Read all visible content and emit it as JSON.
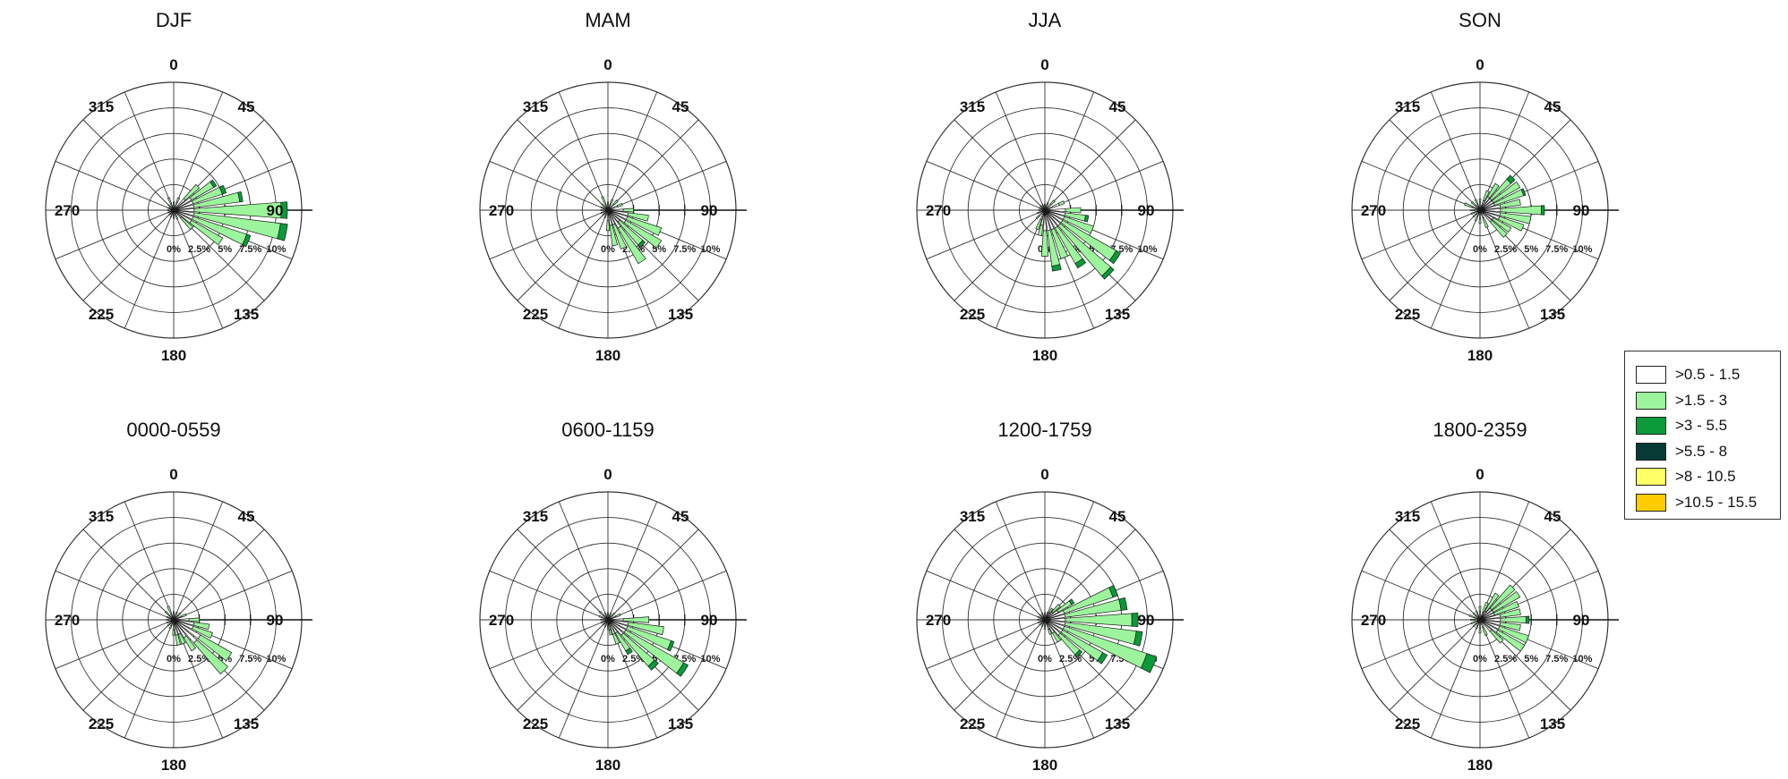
{
  "chart_data": {
    "type": "windrose",
    "direction_labels": [
      "0",
      "45",
      "90",
      "135",
      "180",
      "225",
      "270",
      "315"
    ],
    "radial_ticks": [
      {
        "value": 0,
        "label": "0%"
      },
      {
        "value": 2.5,
        "label": "2.5%"
      },
      {
        "value": 5,
        "label": "5%"
      },
      {
        "value": 7.5,
        "label": "7.5%"
      },
      {
        "value": 10,
        "label": "10%"
      }
    ],
    "radial_max": 12.5,
    "speed_bins": [
      {
        "name": ">0.5 - 1.5",
        "color": "#ffffff"
      },
      {
        "name": ">1.5 - 3",
        "color": "#9cf59c"
      },
      {
        "name": ">3 - 5.5",
        "color": "#0a9a3a"
      },
      {
        "name": ">5.5 - 8",
        "color": "#063a35"
      },
      {
        "name": ">8 - 10.5",
        "color": "#ffff66"
      },
      {
        "name": ">10.5 - 15.5",
        "color": "#ffcc00"
      }
    ],
    "panels": [
      {
        "title": "DJF",
        "petals": [
          [
            0,
            0.6,
            0.2,
            0,
            0
          ],
          [
            22.5,
            0.8,
            0.5,
            0,
            0
          ],
          [
            45,
            1.5,
            1.8,
            0,
            0
          ],
          [
            56.25,
            2,
            2.5,
            0.3,
            0
          ],
          [
            67.5,
            2,
            3,
            0.4,
            0
          ],
          [
            78.75,
            2,
            4.5,
            0.3,
            0
          ],
          [
            90,
            2,
            8.5,
            0.6,
            0
          ],
          [
            101.25,
            2,
            8.5,
            0.7,
            0
          ],
          [
            112.5,
            2,
            5.5,
            0.4,
            0
          ],
          [
            123.75,
            2,
            3.5,
            0,
            0
          ],
          [
            135,
            1,
            1.5,
            0,
            0
          ],
          [
            157.5,
            0.6,
            0.3,
            0,
            0
          ],
          [
            180,
            0.6,
            0.2,
            0,
            0
          ],
          [
            202.5,
            0.5,
            0.2,
            0,
            0
          ],
          [
            225,
            0.5,
            0.1,
            0,
            0
          ],
          [
            247.5,
            0.5,
            0.1,
            0,
            0
          ],
          [
            270,
            0.5,
            0.1,
            0,
            0
          ],
          [
            292.5,
            0.5,
            0.1,
            0,
            0
          ],
          [
            315,
            0.5,
            0.2,
            0,
            0
          ],
          [
            337.5,
            0.7,
            0.6,
            0,
            0
          ]
        ]
      },
      {
        "title": "MAM",
        "petals": [
          [
            0,
            0.6,
            0.2,
            0,
            0
          ],
          [
            22.5,
            0.6,
            0.5,
            0,
            0
          ],
          [
            45,
            0.8,
            0.5,
            0,
            0
          ],
          [
            67.5,
            1,
            0.5,
            0,
            0
          ],
          [
            90,
            1.5,
            1,
            0,
            0
          ],
          [
            101.25,
            2,
            2,
            0,
            0
          ],
          [
            112.5,
            2,
            3.5,
            0,
            0
          ],
          [
            123.75,
            2,
            4,
            0,
            0
          ],
          [
            135,
            1.5,
            3,
            0.3,
            0
          ],
          [
            146.25,
            2,
            4,
            0,
            0
          ],
          [
            157.5,
            1.5,
            2.5,
            0,
            0
          ],
          [
            168.75,
            1.5,
            2,
            0,
            0
          ],
          [
            180,
            1,
            1,
            0,
            0
          ],
          [
            202.5,
            0.5,
            0.3,
            0,
            0
          ],
          [
            225,
            0.5,
            0.2,
            0,
            0
          ],
          [
            247.5,
            0.5,
            0.2,
            0,
            0
          ],
          [
            270,
            0.5,
            0.2,
            0,
            0
          ],
          [
            292.5,
            0.5,
            0.2,
            0,
            0
          ],
          [
            315,
            0.5,
            0.3,
            0,
            0
          ],
          [
            337.5,
            0.6,
            0.8,
            0,
            0
          ]
        ]
      },
      {
        "title": "JJA",
        "petals": [
          [
            0,
            0.5,
            0.1,
            0,
            0
          ],
          [
            22.5,
            0.6,
            0.2,
            0,
            0
          ],
          [
            45,
            0.8,
            0.5,
            0,
            0
          ],
          [
            67.5,
            1.5,
            0.5,
            0,
            0
          ],
          [
            90,
            2,
            1.5,
            0,
            0
          ],
          [
            101.25,
            2,
            2,
            0.3,
            0
          ],
          [
            112.5,
            2,
            3,
            0,
            0
          ],
          [
            123.75,
            2,
            6,
            0.5,
            0
          ],
          [
            135,
            2,
            6.5,
            0.4,
            0
          ],
          [
            146.25,
            2,
            4,
            0.5,
            0
          ],
          [
            157.5,
            2,
            3,
            0,
            0
          ],
          [
            168.75,
            2,
            3.5,
            0.5,
            0
          ],
          [
            180,
            2,
            2.5,
            0,
            0
          ],
          [
            191.25,
            1.5,
            1,
            0,
            0
          ],
          [
            202.5,
            1,
            1,
            0,
            0
          ],
          [
            225,
            0.8,
            0.3,
            0,
            0
          ],
          [
            247.5,
            0.6,
            0.2,
            0,
            0
          ],
          [
            270,
            0.5,
            0.1,
            0,
            0
          ],
          [
            292.5,
            0.5,
            0.1,
            0,
            0
          ],
          [
            315,
            0.5,
            0.1,
            0,
            0
          ],
          [
            337.5,
            0.5,
            0.1,
            0,
            0
          ]
        ]
      },
      {
        "title": "SON",
        "petals": [
          [
            0,
            0.8,
            0.3,
            0,
            0
          ],
          [
            22.5,
            1,
            1,
            0,
            0
          ],
          [
            33.75,
            1.5,
            1.5,
            0,
            0
          ],
          [
            45,
            1.5,
            2.5,
            0.5,
            0
          ],
          [
            56.25,
            1.5,
            3,
            0,
            0
          ],
          [
            67.5,
            1.5,
            3,
            0.2,
            0
          ],
          [
            78.75,
            2,
            2,
            0,
            0
          ],
          [
            90,
            2,
            4,
            0.3,
            0
          ],
          [
            101.25,
            2,
            3,
            0,
            0
          ],
          [
            112.5,
            2,
            2.5,
            0,
            0
          ],
          [
            123.75,
            1.5,
            2,
            0,
            0
          ],
          [
            135,
            1.5,
            2,
            0,
            0
          ],
          [
            157.5,
            0.8,
            1,
            0,
            0
          ],
          [
            180,
            0.8,
            0.5,
            0,
            0
          ],
          [
            202.5,
            0.6,
            0.5,
            0,
            0
          ],
          [
            225,
            0.6,
            0.3,
            0,
            0
          ],
          [
            247.5,
            0.6,
            0.3,
            0,
            0
          ],
          [
            270,
            0.6,
            0.3,
            0,
            0
          ],
          [
            292.5,
            0.8,
            0.8,
            0,
            0
          ],
          [
            315,
            0.6,
            0.5,
            0,
            0
          ],
          [
            337.5,
            0.6,
            0.5,
            0,
            0
          ]
        ]
      },
      {
        "title": "0000-0559",
        "petals": [
          [
            0,
            0.6,
            0.2,
            0,
            0
          ],
          [
            22.5,
            0.6,
            0.2,
            0,
            0
          ],
          [
            45,
            0.6,
            0.3,
            0,
            0
          ],
          [
            67.5,
            0.8,
            0.5,
            0,
            0
          ],
          [
            90,
            1.5,
            1,
            0,
            0
          ],
          [
            101.25,
            2,
            1.5,
            0,
            0
          ],
          [
            112.5,
            2,
            2,
            0,
            0
          ],
          [
            123.75,
            3,
            3.5,
            0,
            0
          ],
          [
            135,
            3,
            4,
            0,
            0
          ],
          [
            146.25,
            2,
            1.5,
            0,
            0
          ],
          [
            157.5,
            1.5,
            1,
            0,
            0
          ],
          [
            168.75,
            1.5,
            1,
            0,
            0
          ],
          [
            180,
            1,
            0.5,
            0,
            0
          ],
          [
            202.5,
            0.6,
            0.3,
            0,
            0
          ],
          [
            225,
            0.6,
            0.2,
            0,
            0
          ],
          [
            247.5,
            0.5,
            0.2,
            0,
            0
          ],
          [
            270,
            0.5,
            0.2,
            0,
            0
          ],
          [
            292.5,
            0.5,
            0.2,
            0,
            0
          ],
          [
            315,
            0.6,
            0.5,
            0,
            0
          ],
          [
            337.5,
            0.6,
            0.8,
            0,
            0
          ]
        ]
      },
      {
        "title": "0600-1159",
        "petals": [
          [
            0,
            0.5,
            0.2,
            0,
            0
          ],
          [
            22.5,
            0.5,
            0.2,
            0,
            0
          ],
          [
            45,
            0.6,
            0.3,
            0,
            0
          ],
          [
            67.5,
            0.8,
            0.5,
            0,
            0
          ],
          [
            90,
            1.5,
            2.5,
            0,
            0
          ],
          [
            101.25,
            2,
            3.5,
            0,
            0
          ],
          [
            112.5,
            2,
            4.5,
            0.3,
            0
          ],
          [
            123.75,
            2,
            6.5,
            0.5,
            0
          ],
          [
            135,
            2,
            4,
            0.5,
            0
          ],
          [
            146.25,
            1.5,
            2,
            0.4,
            0
          ],
          [
            157.5,
            1.5,
            1,
            0,
            0
          ],
          [
            168.75,
            1,
            0.5,
            0,
            0
          ],
          [
            180,
            0.6,
            0.3,
            0,
            0
          ],
          [
            202.5,
            0.5,
            0.2,
            0,
            0
          ],
          [
            225,
            0.5,
            0.2,
            0,
            0
          ],
          [
            247.5,
            0.5,
            0.2,
            0,
            0
          ],
          [
            270,
            0.5,
            0.2,
            0,
            0
          ],
          [
            292.5,
            0.6,
            0.3,
            0,
            0
          ],
          [
            315,
            0.6,
            0.5,
            0,
            0
          ],
          [
            337.5,
            0.5,
            0.2,
            0,
            0
          ]
        ]
      },
      {
        "title": "1200-1759",
        "petals": [
          [
            0,
            0.5,
            0.2,
            0,
            0
          ],
          [
            22.5,
            0.6,
            0.2,
            0,
            0
          ],
          [
            33.75,
            0.8,
            0.5,
            0,
            0
          ],
          [
            45,
            1,
            1,
            0,
            0
          ],
          [
            56.25,
            1.5,
            1.5,
            0.3,
            0
          ],
          [
            67.5,
            2,
            5,
            0.5,
            0
          ],
          [
            78.75,
            2,
            5.5,
            0.6,
            0
          ],
          [
            90,
            2,
            6.5,
            0.6,
            0
          ],
          [
            101.25,
            2,
            7,
            0.6,
            0
          ],
          [
            112.5,
            2,
            8.5,
            1,
            0
          ],
          [
            123.75,
            2,
            4.5,
            0.5,
            0
          ],
          [
            135,
            2,
            2.5,
            0.3,
            0
          ],
          [
            146.25,
            1.5,
            1,
            0,
            0
          ],
          [
            157.5,
            1,
            0.5,
            0,
            0
          ],
          [
            180,
            0.6,
            0.3,
            0,
            0
          ],
          [
            202.5,
            0.5,
            0.2,
            0,
            0
          ],
          [
            225,
            0.5,
            0.2,
            0,
            0
          ],
          [
            247.5,
            0.5,
            0.2,
            0,
            0
          ],
          [
            270,
            0.5,
            0.2,
            0,
            0
          ],
          [
            292.5,
            0.5,
            0.2,
            0,
            0
          ],
          [
            315,
            0.5,
            0.2,
            0,
            0
          ],
          [
            337.5,
            0.5,
            0.2,
            0,
            0
          ]
        ]
      },
      {
        "title": "1800-2359",
        "petals": [
          [
            0,
            0.8,
            0.5,
            0,
            0
          ],
          [
            22.5,
            0.8,
            1,
            0,
            0
          ],
          [
            33.75,
            1,
            2,
            0,
            0
          ],
          [
            45,
            1.5,
            3,
            0,
            0
          ],
          [
            56.25,
            1.5,
            3,
            0,
            0
          ],
          [
            67.5,
            1.5,
            2.5,
            0,
            0
          ],
          [
            78.75,
            2,
            2,
            0,
            0
          ],
          [
            90,
            2,
            2.5,
            0.3,
            0
          ],
          [
            101.25,
            2,
            2,
            0,
            0
          ],
          [
            112.5,
            2,
            3,
            0,
            0
          ],
          [
            123.75,
            2,
            3,
            0,
            0
          ],
          [
            135,
            1.5,
            1.5,
            0,
            0
          ],
          [
            157.5,
            0.8,
            0.8,
            0,
            0
          ],
          [
            180,
            0.8,
            0.5,
            0,
            0
          ],
          [
            202.5,
            0.6,
            0.3,
            0,
            0
          ],
          [
            225,
            0.6,
            0.3,
            0,
            0
          ],
          [
            247.5,
            0.6,
            0.3,
            0,
            0
          ],
          [
            270,
            0.6,
            0.3,
            0,
            0
          ],
          [
            292.5,
            0.6,
            0.5,
            0,
            0
          ],
          [
            315,
            0.6,
            0.3,
            0,
            0
          ],
          [
            337.5,
            0.6,
            0.3,
            0,
            0
          ]
        ]
      }
    ]
  }
}
